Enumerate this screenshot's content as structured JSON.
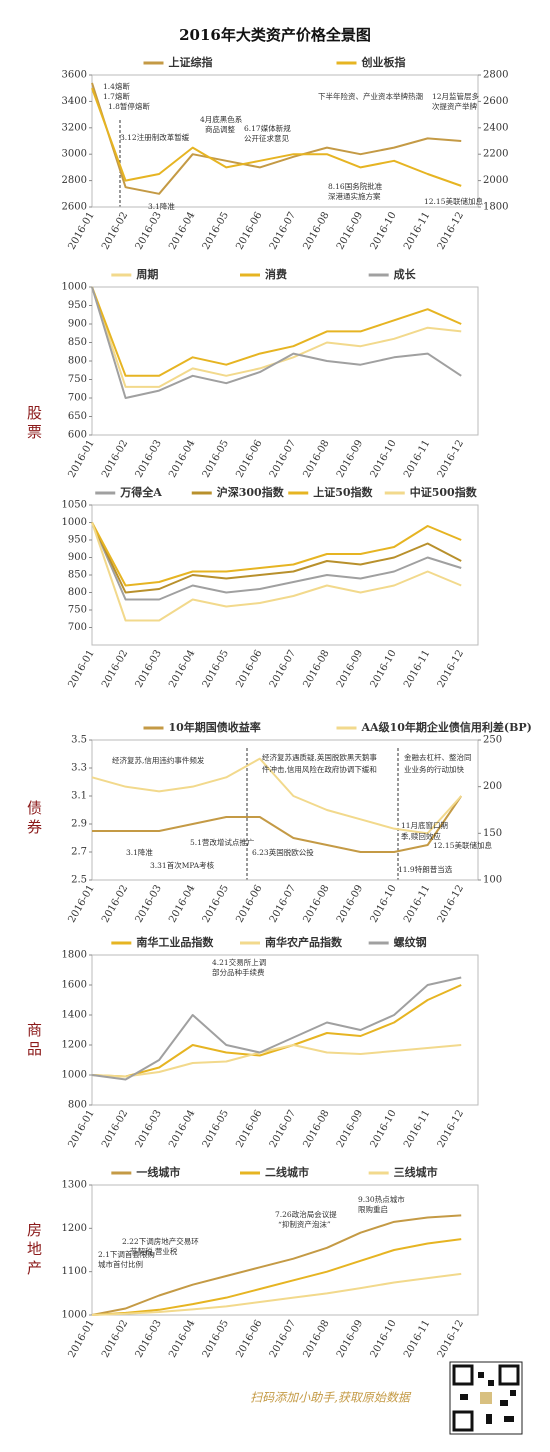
{
  "title": "2016年大类资产价格全景图",
  "section_labels": [
    "股票",
    "债券",
    "商品",
    "房地产"
  ],
  "footer": "扫码添加小助手,获取原始数据",
  "chart_data": [
    {
      "type": "line",
      "legend": "top",
      "categories": [
        "2016-01",
        "2016-02",
        "2016-03",
        "2016-04",
        "2016-05",
        "2016-06",
        "2016-07",
        "2016-08",
        "2016-09",
        "2016-10",
        "2016-11",
        "2016-12"
      ],
      "ylim": [
        2600,
        3600
      ],
      "yticks": [
        2600,
        2800,
        3000,
        3200,
        3400,
        3600
      ],
      "y2lim": [
        1800,
        2800
      ],
      "y2ticks": [
        1800,
        2000,
        2200,
        2400,
        2600,
        2800
      ],
      "series": [
        {
          "name": "上证综指",
          "color": "#c49a45",
          "values": [
            3540,
            2750,
            2700,
            3000,
            2950,
            2900,
            2980,
            3050,
            3000,
            3050,
            3120,
            3100
          ]
        },
        {
          "name": "创业板指",
          "color": "#e6b422",
          "axis": "y2",
          "values": [
            2700,
            2000,
            2050,
            2250,
            2100,
            2150,
            2200,
            2200,
            2100,
            2150,
            2050,
            1960
          ]
        }
      ],
      "annotations": [
        "1.4熔断",
        "1.7熔断",
        "1.8暂停熔断",
        "3.12注册制改革暂缓",
        "3.1降准",
        "4月底黑色系",
        "商品调整",
        "6.17媒体新规",
        "公开征求意见",
        "下半年险资、产业资本举牌热潮",
        "12月监管层多",
        "次提资产举牌",
        "8.16国务院批准",
        "深港通实施方案",
        "12.15美联储加息"
      ]
    },
    {
      "type": "line",
      "legend": "top",
      "categories": [
        "2016-01",
        "2016-02",
        "2016-03",
        "2016-04",
        "2016-05",
        "2016-06",
        "2016-07",
        "2016-08",
        "2016-09",
        "2016-10",
        "2016-11",
        "2016-12"
      ],
      "ylim": [
        600,
        1000
      ],
      "yticks": [
        600,
        650,
        700,
        750,
        800,
        850,
        900,
        950,
        1000
      ],
      "series": [
        {
          "name": "周期",
          "color": "#f2d98c",
          "values": [
            1000,
            730,
            730,
            780,
            760,
            780,
            810,
            850,
            840,
            860,
            890,
            880
          ]
        },
        {
          "name": "消费",
          "color": "#e6b422",
          "values": [
            1000,
            760,
            760,
            810,
            790,
            820,
            840,
            880,
            880,
            910,
            940,
            900
          ]
        },
        {
          "name": "成长",
          "color": "#a0a0a0",
          "values": [
            1000,
            700,
            720,
            760,
            740,
            770,
            820,
            800,
            790,
            810,
            820,
            760
          ]
        }
      ]
    },
    {
      "type": "line",
      "legend": "top",
      "categories": [
        "2016-01",
        "2016-02",
        "2016-03",
        "2016-04",
        "2016-05",
        "2016-06",
        "2016-07",
        "2016-08",
        "2016-09",
        "2016-10",
        "2016-11",
        "2016-12"
      ],
      "ylim": [
        650,
        1050
      ],
      "yticks": [
        700,
        750,
        800,
        850,
        900,
        950,
        1000,
        1050
      ],
      "series": [
        {
          "name": "万得全A",
          "color": "#a0a0a0",
          "values": [
            1000,
            780,
            780,
            820,
            800,
            810,
            830,
            850,
            840,
            860,
            900,
            870
          ]
        },
        {
          "name": "沪深300指数",
          "color": "#b8902c",
          "values": [
            1000,
            800,
            810,
            850,
            840,
            850,
            860,
            890,
            880,
            900,
            940,
            890
          ]
        },
        {
          "name": "上证50指数",
          "color": "#e6b422",
          "values": [
            1000,
            820,
            830,
            860,
            860,
            870,
            880,
            910,
            910,
            930,
            990,
            950
          ]
        },
        {
          "name": "中证500指数",
          "color": "#f2d98c",
          "values": [
            1000,
            720,
            720,
            780,
            760,
            770,
            790,
            820,
            800,
            820,
            860,
            820
          ]
        }
      ]
    },
    {
      "type": "line",
      "legend": "top",
      "categories": [
        "2016-01",
        "2016-02",
        "2016-03",
        "2016-04",
        "2016-05",
        "2016-06",
        "2016-07",
        "2016-08",
        "2016-09",
        "2016-10",
        "2016-11",
        "2016-12"
      ],
      "ylim": [
        2.5,
        3.5
      ],
      "yticks": [
        2.5,
        2.7,
        2.9,
        3.1,
        3.3,
        3.5
      ],
      "y2lim": [
        100,
        250
      ],
      "y2ticks": [
        100,
        150,
        200,
        250
      ],
      "series": [
        {
          "name": "10年期国债收益率",
          "color": "#c49a45",
          "values": [
            2.85,
            2.85,
            2.85,
            2.9,
            2.95,
            2.95,
            2.8,
            2.75,
            2.7,
            2.7,
            2.75,
            3.1
          ]
        },
        {
          "name": "AA级10年期企业债信用利差(BP)",
          "color": "#f2d98c",
          "axis": "y2",
          "values": [
            210,
            200,
            195,
            200,
            210,
            230,
            190,
            175,
            165,
            155,
            150,
            190
          ]
        }
      ],
      "annotations": [
        "经济复苏,信用违约事件频发",
        "经济复苏遇质疑,英国脱欧黑天鹅事",
        "件冲击,信用风险在政府协调下缓和",
        "金融去杠杆、整治同",
        "业业务的行动加快",
        "3.1降准",
        "3.31首次MPA考核",
        "5.1营改增试点推广",
        "6.23英国脱欧公投",
        "11月底窗口期",
        "季,赎回效应",
        "12.15美联储加息",
        "11.9特朗普当选"
      ]
    },
    {
      "type": "line",
      "legend": "top",
      "categories": [
        "2016-01",
        "2016-02",
        "2016-03",
        "2016-04",
        "2016-05",
        "2016-06",
        "2016-07",
        "2016-08",
        "2016-09",
        "2016-10",
        "2016-11",
        "2016-12"
      ],
      "ylim": [
        800,
        1800
      ],
      "yticks": [
        800,
        1000,
        1200,
        1400,
        1600,
        1800
      ],
      "series": [
        {
          "name": "南华工业品指数",
          "color": "#e6b422",
          "values": [
            1000,
            990,
            1050,
            1200,
            1150,
            1130,
            1200,
            1280,
            1260,
            1350,
            1500,
            1600
          ]
        },
        {
          "name": "南华农产品指数",
          "color": "#f2d98c",
          "values": [
            1000,
            990,
            1020,
            1080,
            1090,
            1150,
            1200,
            1150,
            1140,
            1160,
            1180,
            1200
          ]
        },
        {
          "name": "螺纹钢",
          "color": "#a0a0a0",
          "values": [
            1000,
            970,
            1100,
            1400,
            1200,
            1150,
            1250,
            1350,
            1300,
            1400,
            1600,
            1650
          ]
        }
      ],
      "annotations": [
        "4.21交易所上调",
        "部分品种手续费"
      ]
    },
    {
      "type": "line",
      "legend": "top",
      "categories": [
        "2016-01",
        "2016-02",
        "2016-03",
        "2016-04",
        "2016-05",
        "2016-06",
        "2016-07",
        "2016-08",
        "2016-09",
        "2016-10",
        "2016-11",
        "2016-12"
      ],
      "ylim": [
        1000,
        1300
      ],
      "yticks": [
        1000,
        1100,
        1200,
        1300
      ],
      "series": [
        {
          "name": "一线城市",
          "color": "#c49a45",
          "values": [
            1000,
            1015,
            1045,
            1070,
            1090,
            1110,
            1130,
            1155,
            1190,
            1215,
            1225,
            1230
          ]
        },
        {
          "name": "二线城市",
          "color": "#e6b422",
          "values": [
            1000,
            1005,
            1012,
            1025,
            1040,
            1060,
            1080,
            1100,
            1125,
            1150,
            1165,
            1175
          ]
        },
        {
          "name": "三线城市",
          "color": "#f2d98c",
          "values": [
            1000,
            1003,
            1007,
            1013,
            1020,
            1030,
            1040,
            1050,
            1062,
            1075,
            1085,
            1095
          ]
        }
      ],
      "annotations": [
        "7.26政治局会议提",
        "“抑制资产泡沫”",
        "9.30热点城市",
        "限购重启",
        "2.22下调房地产交易环",
        "节契税,营业税",
        "2.1下调首套限购",
        "城市首付比例"
      ]
    }
  ]
}
